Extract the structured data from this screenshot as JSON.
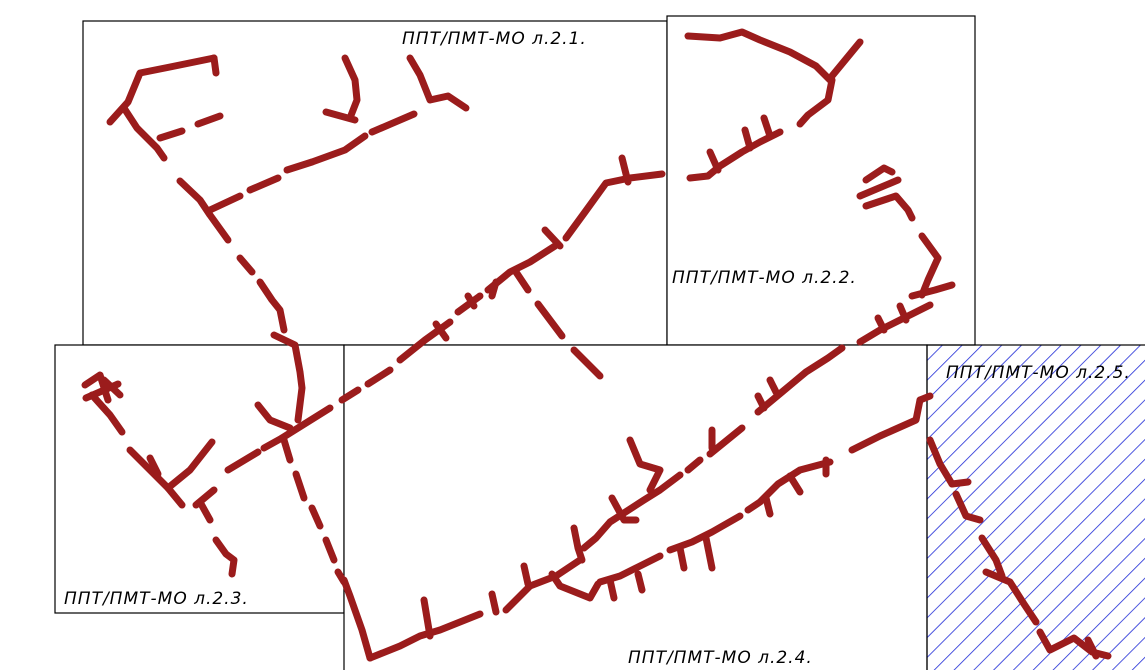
{
  "sheets": [
    {
      "label": "ППТ/ПМТ-МО  л.2.1."
    },
    {
      "label": "ППТ/ПМТ-МО  л.2.2."
    },
    {
      "label": "ППТ/ПМТ-МО  л.2.3."
    },
    {
      "label": "ППТ/ПМТ-МО  л.2.4."
    },
    {
      "label": "ППТ/ПМТ-МО  л.2.5."
    }
  ],
  "colors": {
    "route": "#9b1c1c",
    "hatch": "#1f2bd6",
    "frame": "#000000"
  }
}
